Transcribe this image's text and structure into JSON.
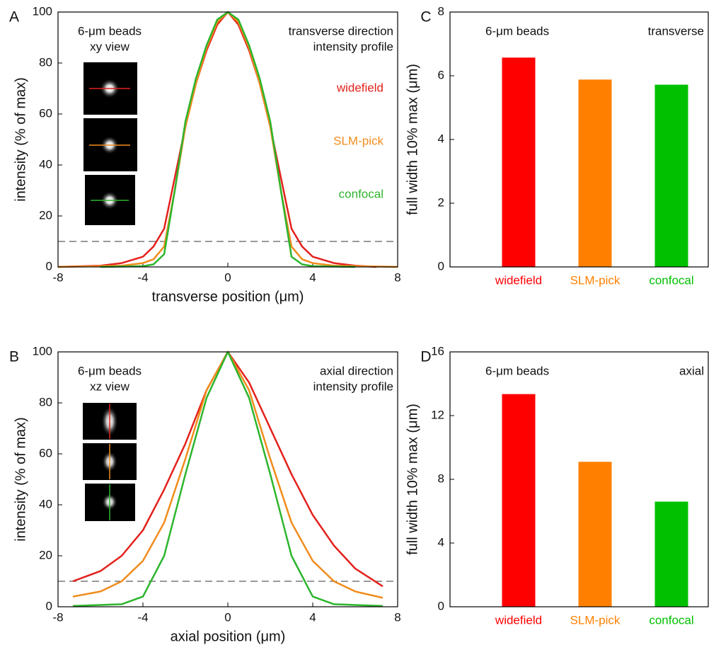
{
  "chart_data": [
    {
      "type": "line",
      "panel": "A",
      "inset_label": [
        "6-μm beads",
        "xy view"
      ],
      "profile_label": [
        "transverse direction",
        "intensity profile"
      ],
      "xlabel": "transverse position (μm)",
      "ylabel": "intensity (% of max)",
      "xlim": [
        -8,
        8
      ],
      "xticks": [
        -8,
        -4,
        0,
        4,
        8
      ],
      "ylim": [
        0,
        100
      ],
      "yticks": [
        0,
        20,
        40,
        60,
        80,
        100
      ],
      "reference_line": 10,
      "series": [
        {
          "name": "widefield",
          "color": "#e3211c",
          "x": [
            -8,
            -6,
            -5,
            -4,
            -3.5,
            -3,
            -2.5,
            -2,
            -1.5,
            -1,
            -0.5,
            0,
            0.5,
            1,
            1.5,
            2,
            2.5,
            3,
            3.5,
            4,
            5,
            6,
            7
          ],
          "values": [
            0,
            0.5,
            1.5,
            4,
            8,
            15,
            35,
            55,
            72,
            85,
            95,
            100,
            95,
            85,
            72,
            55,
            35,
            15,
            8,
            4,
            1.5,
            0.5,
            0
          ]
        },
        {
          "name": "SLM-pick",
          "color": "#f08c1c",
          "x": [
            -8,
            -5,
            -4,
            -3.5,
            -3,
            -2.5,
            -2,
            -1.5,
            -1,
            -0.5,
            0,
            0.5,
            1,
            1.5,
            2,
            2.5,
            3,
            3.5,
            4,
            5,
            8
          ],
          "values": [
            0,
            0.5,
            1.5,
            3,
            8,
            30,
            55,
            72,
            86,
            96,
            100,
            96,
            86,
            72,
            55,
            30,
            8,
            3,
            1.5,
            0.5,
            0
          ]
        },
        {
          "name": "confocal",
          "color": "#2db52d",
          "x": [
            -6,
            -4,
            -3.5,
            -3,
            -2.5,
            -2,
            -1.5,
            -1,
            -0.5,
            0,
            0.5,
            1,
            1.5,
            2,
            2.5,
            3,
            3.5,
            4,
            6
          ],
          "values": [
            0,
            0.3,
            1,
            5,
            30,
            57,
            74,
            87,
            97,
            100,
            97,
            87,
            74,
            57,
            30,
            4,
            1,
            0.3,
            0
          ]
        }
      ]
    },
    {
      "type": "line",
      "panel": "B",
      "inset_label": [
        "6-μm beads",
        "xz view"
      ],
      "profile_label": [
        "axial direction",
        "intensity profile"
      ],
      "xlabel": "axial position (μm)",
      "ylabel": "intensity (% of max)",
      "xlim": [
        -8,
        8
      ],
      "xticks": [
        -8,
        -4,
        0,
        4,
        8
      ],
      "ylim": [
        0,
        100
      ],
      "yticks": [
        0,
        20,
        40,
        60,
        80,
        100
      ],
      "reference_line": 10,
      "series": [
        {
          "color": "#e3211c",
          "x": [
            -7.3,
            -6,
            -5,
            -4,
            -3,
            -2,
            -1,
            0,
            1,
            2,
            3,
            4,
            5,
            6,
            7.3
          ],
          "values": [
            10,
            14,
            20,
            30,
            46,
            64,
            85,
            100,
            88,
            70,
            52,
            36,
            24,
            15,
            8
          ]
        },
        {
          "color": "#f08c1c",
          "x": [
            -7.3,
            -6,
            -5,
            -4,
            -3,
            -2,
            -1,
            0,
            1,
            2,
            3,
            4,
            5,
            6,
            7.3
          ],
          "values": [
            4,
            6,
            10,
            18,
            33,
            58,
            85,
            100,
            85,
            58,
            33,
            18,
            10,
            6,
            3.5
          ]
        },
        {
          "color": "#2db52d",
          "x": [
            -7.3,
            -5,
            -4,
            -3,
            -2,
            -1,
            0,
            1,
            2,
            3,
            4,
            5,
            7.3
          ],
          "values": [
            0.3,
            1,
            4,
            20,
            52,
            82,
            100,
            82,
            52,
            20,
            4,
            1,
            0.3
          ]
        }
      ]
    },
    {
      "type": "bar",
      "panel": "C",
      "annotation_left": "6-μm beads",
      "annotation_right": "transverse",
      "ylabel": "full width 10% max (μm)",
      "categories": [
        "widefield",
        "SLM-pick",
        "confocal"
      ],
      "values": [
        6.57,
        5.88,
        5.72
      ],
      "colors": [
        "#ff0000",
        "#ff8000",
        "#00c000"
      ],
      "ylim": [
        0,
        8
      ],
      "yticks": [
        0,
        2,
        4,
        6,
        8
      ]
    },
    {
      "type": "bar",
      "panel": "D",
      "annotation_left": "6-μm beads",
      "annotation_right": "axial",
      "ylabel": "full width 10% max (μm)",
      "categories": [
        "widefield",
        "SLM-pick",
        "confocal"
      ],
      "values": [
        13.35,
        9.1,
        6.6
      ],
      "colors": [
        "#ff0000",
        "#ff8000",
        "#00c000"
      ],
      "ylim": [
        0,
        16
      ],
      "yticks": [
        0,
        4,
        8,
        12,
        16
      ]
    }
  ]
}
